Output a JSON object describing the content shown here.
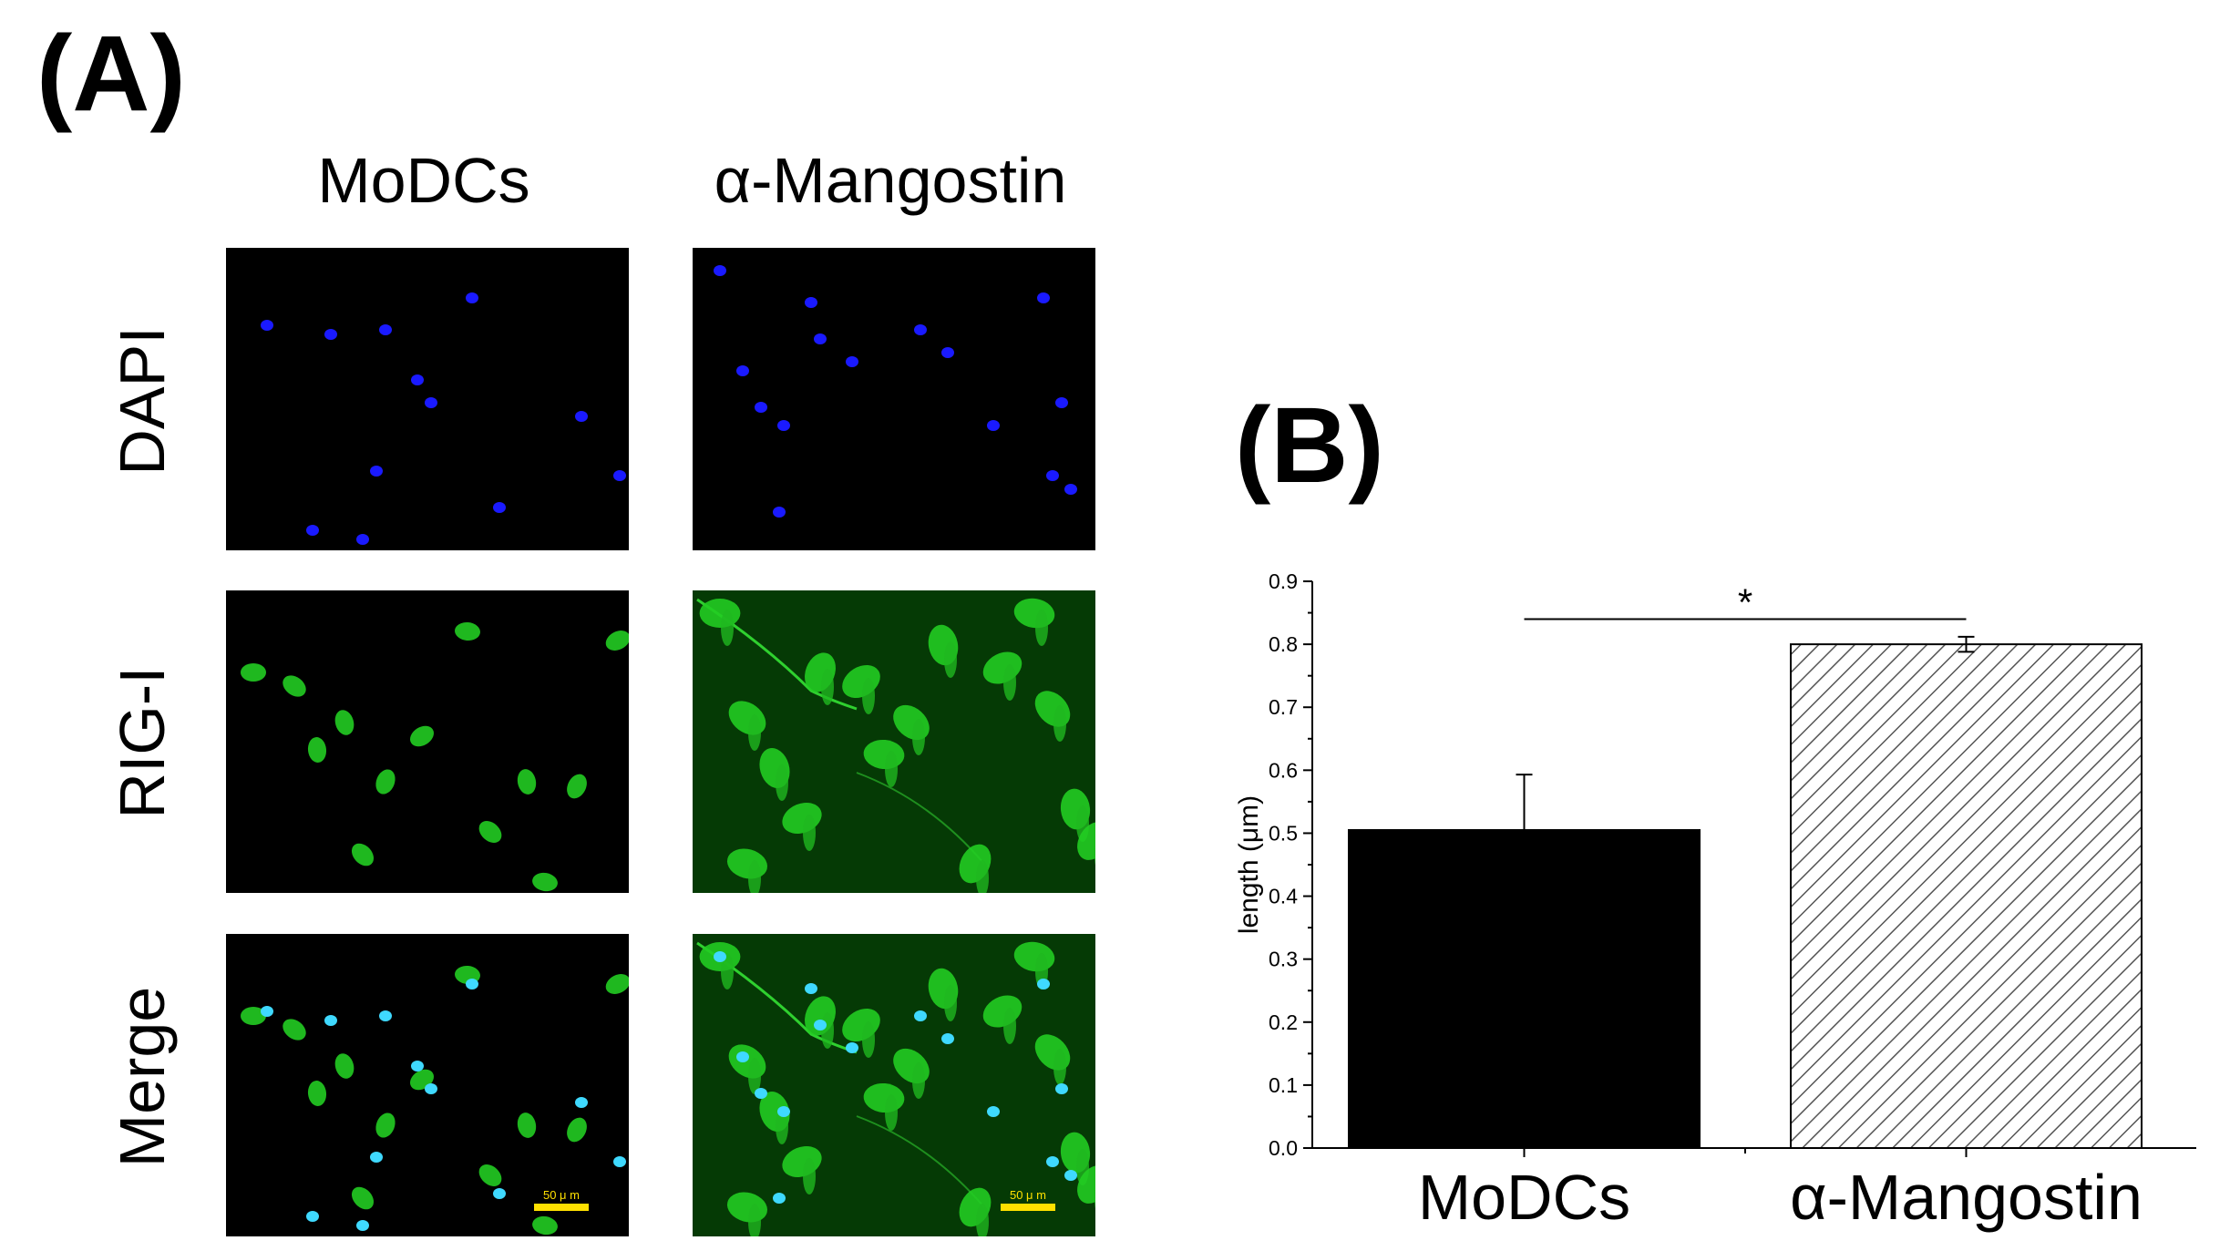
{
  "panel_a": {
    "label": "(A)",
    "columns": [
      "MoDCs",
      "α-Mangostin"
    ],
    "rows": [
      "DAPI",
      "RIG-I",
      "Merge"
    ],
    "scale_bar_label": "50 μ m",
    "colors": {
      "nucleus": "#1a1aff",
      "rig_i": "#22cc22",
      "scale_bar": "#ffe000",
      "background": "#000000"
    }
  },
  "panel_b": {
    "label": "(B)"
  },
  "chart_data": {
    "type": "bar",
    "categories": [
      "MoDCs",
      "α-Mangostin"
    ],
    "values": [
      0.505,
      0.8
    ],
    "errors": [
      0.088,
      0.012
    ],
    "bar_styles": [
      "solid black",
      "diagonal hatch"
    ],
    "ylabel": "length (μm)",
    "xlabel": "",
    "ylim": [
      0.0,
      0.9
    ],
    "yticks": [
      "0.0",
      "0.1",
      "0.2",
      "0.3",
      "0.4",
      "0.5",
      "0.6",
      "0.7",
      "0.8",
      "0.9"
    ],
    "significance": {
      "between": [
        "MoDCs",
        "α-Mangostin"
      ],
      "symbol": "*"
    },
    "grid": false
  }
}
